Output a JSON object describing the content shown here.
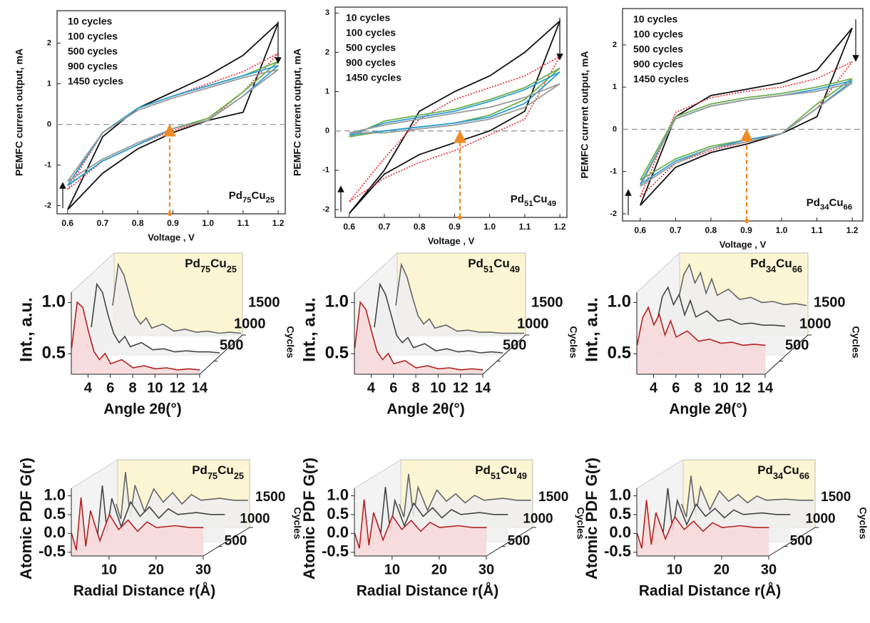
{
  "chart_data": [
    {
      "type": "line",
      "sample": "Pd75Cu25",
      "xlabel": "Voltage , V",
      "ylabel": "PEMFC current output, mA",
      "x": [
        0.6,
        0.7,
        0.8,
        0.9,
        1.0,
        1.1,
        1.2,
        1.1,
        1.0,
        0.9,
        0.8,
        0.7,
        0.6
      ],
      "series": [
        {
          "name": "10 cycles",
          "color": "#111111",
          "values": [
            -2.1,
            -0.3,
            0.4,
            0.8,
            1.2,
            1.7,
            2.5,
            0.3,
            0.1,
            -0.2,
            -0.6,
            -1.2,
            -2.1
          ]
        },
        {
          "name": "100 cycles",
          "color": "#e8383d",
          "values": [
            -1.6,
            -0.2,
            0.4,
            0.7,
            1.0,
            1.3,
            1.75,
            0.8,
            0.1,
            -0.15,
            -0.5,
            -0.9,
            -1.6
          ]
        },
        {
          "name": "500 cycles",
          "color": "#6ab04c",
          "values": [
            -1.5,
            -0.2,
            0.4,
            0.7,
            0.95,
            1.2,
            1.55,
            0.8,
            0.15,
            -0.1,
            -0.5,
            -0.9,
            -1.5
          ]
        },
        {
          "name": "900 cycles",
          "color": "#2e9fd8",
          "values": [
            -1.5,
            -0.2,
            0.4,
            0.7,
            0.95,
            1.2,
            1.45,
            0.7,
            0.1,
            -0.1,
            -0.5,
            -0.9,
            -1.5
          ]
        },
        {
          "name": "1450 cycles",
          "color": "#999999",
          "values": [
            -1.4,
            -0.2,
            0.35,
            0.65,
            0.9,
            1.15,
            1.35,
            0.7,
            0.1,
            -0.1,
            -0.45,
            -0.85,
            -1.4
          ]
        }
      ],
      "xlim": [
        0.57,
        1.22
      ],
      "ylim": [
        -2.2,
        2.8
      ],
      "xticks": [
        0.6,
        0.7,
        0.8,
        0.9,
        {
          "value": 1,
          "label": "1.0"
        },
        1.1,
        1.2
      ],
      "yticks": [
        -2,
        -1,
        0,
        1,
        2
      ],
      "zero_line": true
    },
    {
      "type": "line",
      "sample": "Pd51Cu49",
      "xlabel": "Voltage , V",
      "ylabel": "PEMFC current output, mA",
      "x": [
        0.6,
        0.7,
        0.8,
        0.9,
        1.0,
        1.1,
        1.2,
        1.1,
        1.0,
        0.9,
        0.8,
        0.7,
        0.6
      ],
      "series": [
        {
          "name": "10 cycles",
          "color": "#111111",
          "values": [
            -2.1,
            -1.0,
            0.5,
            1.0,
            1.4,
            2.0,
            2.8,
            0.5,
            0.0,
            -0.3,
            -0.6,
            -1.1,
            -2.1
          ]
        },
        {
          "name": "100 cycles",
          "color": "#e8383d",
          "values": [
            -1.8,
            -0.7,
            0.3,
            0.8,
            1.1,
            1.4,
            1.9,
            0.3,
            -0.1,
            -0.5,
            -0.8,
            -1.2,
            -1.8
          ]
        },
        {
          "name": "500 cycles",
          "color": "#6ab04c",
          "values": [
            -0.15,
            0.25,
            0.4,
            0.55,
            0.8,
            1.1,
            1.6,
            0.8,
            0.4,
            0.2,
            0.1,
            0.0,
            -0.15
          ]
        },
        {
          "name": "900 cycles",
          "color": "#2e9fd8",
          "values": [
            -0.1,
            0.2,
            0.35,
            0.5,
            0.75,
            1.05,
            1.5,
            0.7,
            0.35,
            0.2,
            0.1,
            0.0,
            -0.1
          ]
        },
        {
          "name": "1450 cycles",
          "color": "#999999",
          "values": [
            -0.05,
            0.15,
            0.3,
            0.45,
            0.6,
            0.85,
            1.2,
            0.6,
            0.3,
            0.15,
            0.05,
            -0.05,
            -0.05
          ]
        }
      ],
      "xlim": [
        0.56,
        1.22
      ],
      "ylim": [
        -2.2,
        3.15
      ],
      "xticks": [
        0.6,
        0.7,
        0.8,
        0.9,
        {
          "value": 1,
          "label": "1.0"
        },
        1.1,
        1.2
      ],
      "yticks": [
        -2,
        -1,
        0,
        1,
        2,
        3
      ],
      "zero_line": true
    },
    {
      "type": "line",
      "sample": "Pd34Cu66",
      "xlabel": "Voltage , V",
      "ylabel": "PEMFC current output, mA",
      "x": [
        0.6,
        0.7,
        0.8,
        0.9,
        1.0,
        1.1,
        1.2,
        1.1,
        1.0,
        0.9,
        0.8,
        0.7,
        0.6
      ],
      "series": [
        {
          "name": "10 cycles",
          "color": "#111111",
          "values": [
            -1.8,
            0.3,
            0.8,
            0.95,
            1.1,
            1.4,
            2.4,
            0.3,
            -0.1,
            -0.35,
            -0.55,
            -0.9,
            -1.8
          ]
        },
        {
          "name": "100 cycles",
          "color": "#e8383d",
          "values": [
            -1.6,
            0.4,
            0.75,
            0.9,
            1.0,
            1.2,
            1.6,
            0.5,
            -0.1,
            -0.3,
            -0.5,
            -0.8,
            -1.6
          ]
        },
        {
          "name": "500 cycles",
          "color": "#6ab04c",
          "values": [
            -1.2,
            0.3,
            0.6,
            0.75,
            0.85,
            1.0,
            1.2,
            0.6,
            -0.1,
            -0.25,
            -0.4,
            -0.7,
            -1.2
          ]
        },
        {
          "name": "900 cycles",
          "color": "#2e9fd8",
          "values": [
            -1.3,
            0.25,
            0.55,
            0.7,
            0.8,
            0.95,
            1.15,
            0.5,
            -0.1,
            -0.25,
            -0.45,
            -0.75,
            -1.3
          ]
        },
        {
          "name": "1450 cycles",
          "color": "#999999",
          "values": [
            -1.35,
            0.25,
            0.55,
            0.7,
            0.8,
            0.9,
            1.1,
            0.5,
            -0.1,
            -0.3,
            -0.45,
            -0.8,
            -1.35
          ]
        }
      ],
      "xlim": [
        0.55,
        1.23
      ],
      "ylim": [
        -2.17,
        2.86
      ],
      "xticks": [
        0.6,
        0.7,
        0.8,
        0.9,
        {
          "value": 1,
          "label": "1.0"
        },
        1.1,
        1.2
      ],
      "yticks": [
        -2,
        -1,
        0,
        1,
        2
      ],
      "zero_line": true
    },
    {
      "type": "waterfall",
      "sample": "Pd75Cu25",
      "xlabel": "Angle 2θ(°)",
      "ylabel": "Int., a.u.",
      "zlabel": "Cycles",
      "x": [
        2.5,
        3,
        3.5,
        4,
        4.5,
        5,
        5.5,
        6,
        7,
        8,
        9,
        10,
        11,
        12,
        13,
        14
      ],
      "series": [
        {
          "z": 1450,
          "color": "#666666",
          "values": [
            0.6,
            1.0,
            0.9,
            0.7,
            0.5,
            0.42,
            0.48,
            0.38,
            0.42,
            0.35,
            0.37,
            0.34,
            0.35,
            0.33,
            0.34,
            0.33
          ]
        },
        {
          "z": 700,
          "color": "#444444",
          "values": [
            0.58,
            1.0,
            0.92,
            0.7,
            0.52,
            0.43,
            0.49,
            0.39,
            0.43,
            0.36,
            0.37,
            0.34,
            0.35,
            0.34,
            0.34,
            0.33
          ]
        },
        {
          "z": 10,
          "color": "#b22222",
          "values": [
            0.55,
            1.0,
            0.95,
            0.72,
            0.52,
            0.44,
            0.5,
            0.4,
            0.44,
            0.36,
            0.38,
            0.35,
            0.36,
            0.34,
            0.35,
            0.34
          ]
        }
      ],
      "xlim": [
        2.5,
        14
      ],
      "ylim": [
        0.3,
        1.1
      ],
      "zlim": [
        0,
        1500
      ],
      "xticks": [
        4,
        6,
        8,
        10,
        12,
        14
      ],
      "yticks": [
        0.5,
        {
          "value": 1,
          "label": "1.0"
        }
      ],
      "zticks": [
        500,
        1000,
        1500
      ]
    },
    {
      "type": "waterfall",
      "sample": "Pd51Cu49",
      "xlabel": "Angle 2θ(°)",
      "ylabel": "Int., a.u.",
      "zlabel": "Cycles",
      "x": [
        2.5,
        3,
        3.5,
        4,
        4.5,
        5,
        5.5,
        6,
        7,
        8,
        9,
        10,
        11,
        12,
        13,
        14
      ],
      "series": [
        {
          "z": 1450,
          "color": "#666666",
          "values": [
            0.6,
            1.0,
            0.88,
            0.68,
            0.5,
            0.42,
            0.47,
            0.38,
            0.41,
            0.35,
            0.36,
            0.34,
            0.34,
            0.33,
            0.33,
            0.33
          ]
        },
        {
          "z": 700,
          "color": "#444444",
          "values": [
            0.58,
            1.0,
            0.9,
            0.7,
            0.5,
            0.43,
            0.48,
            0.38,
            0.42,
            0.35,
            0.37,
            0.34,
            0.35,
            0.33,
            0.34,
            0.33
          ]
        },
        {
          "z": 10,
          "color": "#b22222",
          "values": [
            0.55,
            1.0,
            0.93,
            0.72,
            0.52,
            0.44,
            0.5,
            0.4,
            0.43,
            0.36,
            0.38,
            0.35,
            0.36,
            0.34,
            0.35,
            0.34
          ]
        }
      ],
      "xlim": [
        2.5,
        14
      ],
      "ylim": [
        0.3,
        1.1
      ],
      "zlim": [
        0,
        1500
      ],
      "xticks": [
        4,
        6,
        8,
        10,
        12,
        14
      ],
      "yticks": [
        0.5,
        {
          "value": 1,
          "label": "1.0"
        }
      ],
      "zticks": [
        500,
        1000,
        1500
      ]
    },
    {
      "type": "waterfall",
      "sample": "Pd34Cu66",
      "xlabel": "Angle 2θ(°)",
      "ylabel": "Int., a.u.",
      "zlabel": "Cycles",
      "x": [
        2.5,
        3,
        3.5,
        4,
        4.5,
        5,
        5.5,
        6,
        7,
        8,
        9,
        10,
        11,
        12,
        13,
        14
      ],
      "series": [
        {
          "z": 1450,
          "color": "#666666",
          "values": [
            0.65,
            0.9,
            1.0,
            0.82,
            0.92,
            0.72,
            0.86,
            0.7,
            0.76,
            0.66,
            0.68,
            0.63,
            0.64,
            0.61,
            0.62,
            0.6
          ]
        },
        {
          "z": 700,
          "color": "#444444",
          "values": [
            0.62,
            0.88,
            0.97,
            0.8,
            0.9,
            0.7,
            0.84,
            0.68,
            0.74,
            0.64,
            0.66,
            0.61,
            0.62,
            0.6,
            0.6,
            0.59
          ]
        },
        {
          "z": 10,
          "color": "#b22222",
          "values": [
            0.58,
            0.85,
            0.95,
            0.78,
            0.88,
            0.68,
            0.82,
            0.66,
            0.72,
            0.62,
            0.64,
            0.6,
            0.61,
            0.58,
            0.59,
            0.58
          ]
        }
      ],
      "xlim": [
        2.5,
        14
      ],
      "ylim": [
        0.3,
        1.1
      ],
      "zlim": [
        0,
        1500
      ],
      "xticks": [
        4,
        6,
        8,
        10,
        12,
        14
      ],
      "yticks": [
        0.5,
        {
          "value": 1,
          "label": "1.0"
        }
      ],
      "zticks": [
        500,
        1000,
        1500
      ]
    },
    {
      "type": "waterfall",
      "sample": "Pd75Cu25",
      "xlabel": "Radial Distance r(Å)",
      "ylabel": "Atomic PDF G(r)",
      "zlabel": "Cycles",
      "x": [
        2,
        3,
        4,
        5,
        6,
        8,
        10,
        12,
        14,
        16,
        18,
        20,
        24,
        27,
        30
      ],
      "series": [
        {
          "z": 1450,
          "color": "#666666",
          "values": [
            0.05,
            -0.35,
            0.9,
            -0.3,
            0.55,
            -0.15,
            0.45,
            0.1,
            0.35,
            0.05,
            0.3,
            0.15,
            0.2,
            0.15,
            0.15
          ]
        },
        {
          "z": 700,
          "color": "#444444",
          "values": [
            0.0,
            -0.4,
            0.92,
            -0.32,
            0.58,
            -0.18,
            0.48,
            0.1,
            0.35,
            0.05,
            0.3,
            0.15,
            0.2,
            0.15,
            0.15
          ]
        },
        {
          "z": 10,
          "color": "#b22222",
          "values": [
            0.0,
            -0.45,
            0.95,
            -0.35,
            0.6,
            -0.2,
            0.5,
            0.1,
            0.35,
            0.05,
            0.3,
            0.15,
            0.2,
            0.15,
            0.15
          ]
        }
      ],
      "xlim": [
        2,
        30
      ],
      "ylim": [
        -0.6,
        1.2
      ],
      "zlim": [
        0,
        1500
      ],
      "xticks": [
        10,
        20,
        30
      ],
      "yticks": [
        -0.5,
        {
          "value": 0,
          "label": "0.0"
        },
        0.5,
        {
          "value": 1,
          "label": "1.0"
        }
      ],
      "zticks": [
        500,
        1000,
        1500
      ]
    },
    {
      "type": "waterfall",
      "sample": "Pd51Cu49",
      "xlabel": "Radial Distance r(Å)",
      "ylabel": "Atomic PDF G(r)",
      "zlabel": "Cycles",
      "x": [
        2,
        3,
        4,
        5,
        6,
        8,
        10,
        12,
        14,
        16,
        18,
        20,
        24,
        27,
        30
      ],
      "series": [
        {
          "z": 1450,
          "color": "#666666",
          "values": [
            0.05,
            -0.3,
            0.85,
            -0.28,
            0.5,
            -0.12,
            0.42,
            0.12,
            0.32,
            0.08,
            0.28,
            0.15,
            0.2,
            0.15,
            0.15
          ]
        },
        {
          "z": 700,
          "color": "#444444",
          "values": [
            0.02,
            -0.35,
            0.88,
            -0.3,
            0.52,
            -0.15,
            0.45,
            0.1,
            0.33,
            0.06,
            0.28,
            0.15,
            0.2,
            0.15,
            0.15
          ]
        },
        {
          "z": 10,
          "color": "#b22222",
          "values": [
            0.0,
            -0.4,
            0.9,
            -0.32,
            0.55,
            -0.18,
            0.46,
            0.1,
            0.34,
            0.05,
            0.29,
            0.15,
            0.2,
            0.15,
            0.15
          ]
        }
      ],
      "xlim": [
        2,
        30
      ],
      "ylim": [
        -0.6,
        1.2
      ],
      "zlim": [
        0,
        1500
      ],
      "xticks": [
        10,
        20,
        30
      ],
      "yticks": [
        -0.5,
        {
          "value": 0,
          "label": "0.0"
        },
        0.5,
        {
          "value": 1,
          "label": "1.0"
        }
      ],
      "zticks": [
        500,
        1000,
        1500
      ]
    },
    {
      "type": "waterfall",
      "sample": "Pd34Cu66",
      "xlabel": "Radial Distance r(Å)",
      "ylabel": "Atomic PDF G(r)",
      "zlabel": "Cycles",
      "x": [
        2,
        3,
        4,
        5,
        6,
        8,
        10,
        12,
        14,
        16,
        18,
        20,
        24,
        27,
        30
      ],
      "series": [
        {
          "z": 1450,
          "color": "#666666",
          "values": [
            0.05,
            -0.3,
            0.8,
            -0.25,
            0.5,
            -0.1,
            0.4,
            0.12,
            0.3,
            0.08,
            0.26,
            0.15,
            0.18,
            0.15,
            0.15
          ]
        },
        {
          "z": 700,
          "color": "#444444",
          "values": [
            0.02,
            -0.35,
            0.85,
            -0.28,
            0.52,
            -0.12,
            0.42,
            0.1,
            0.31,
            0.06,
            0.27,
            0.15,
            0.19,
            0.15,
            0.15
          ]
        },
        {
          "z": 10,
          "color": "#b22222",
          "values": [
            0.0,
            -0.4,
            0.88,
            -0.3,
            0.55,
            -0.15,
            0.44,
            0.1,
            0.32,
            0.05,
            0.28,
            0.15,
            0.2,
            0.15,
            0.15
          ]
        }
      ],
      "xlim": [
        2,
        30
      ],
      "ylim": [
        -0.6,
        1.2
      ],
      "zlim": [
        0,
        1500
      ],
      "xticks": [
        10,
        20,
        30
      ],
      "yticks": [
        -0.5,
        {
          "value": 0,
          "label": "0.0"
        },
        0.5,
        {
          "value": 1,
          "label": "1.0"
        }
      ],
      "zticks": [
        500,
        1000,
        1500
      ]
    }
  ]
}
